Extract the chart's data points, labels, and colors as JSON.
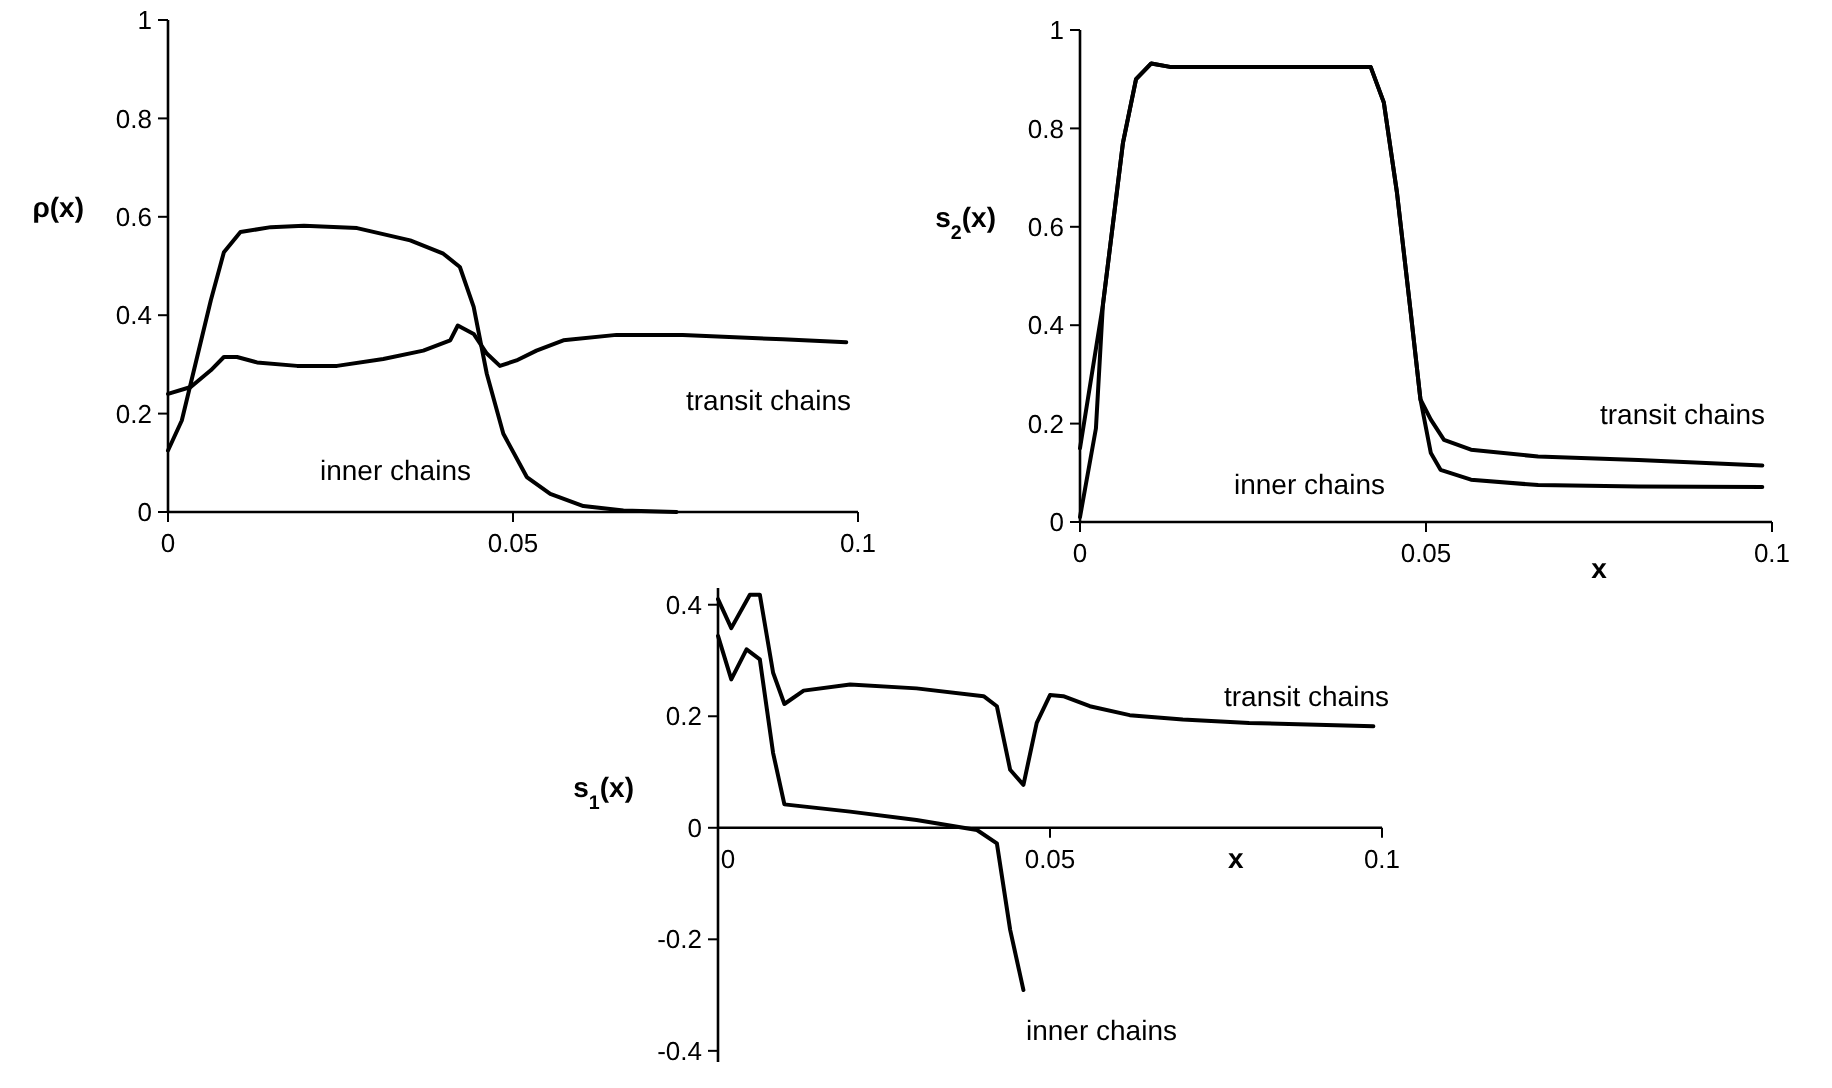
{
  "chart_data": [
    {
      "type": "line",
      "ylabel": "ρ(x)",
      "xlim": [
        0,
        0.1
      ],
      "ylim": [
        0,
        1
      ],
      "xticks": [
        0,
        0.05,
        0.1
      ],
      "yticks": [
        0,
        0.2,
        0.4,
        0.6,
        0.8,
        1
      ],
      "grid": false,
      "marker": "none",
      "line_style": "solid",
      "series": [
        {
          "name": "inner chains",
          "color": "#000000",
          "x": [
            0,
            0.002,
            0.0062,
            0.0081,
            0.0105,
            0.0149,
            0.0197,
            0.0274,
            0.0351,
            0.0399,
            0.0423,
            0.0443,
            0.0462,
            0.0486,
            0.052,
            0.0554,
            0.0602,
            0.066,
            0.0737
          ],
          "values": [
            0.125,
            0.186,
            0.43,
            0.528,
            0.569,
            0.579,
            0.582,
            0.577,
            0.552,
            0.525,
            0.498,
            0.417,
            0.281,
            0.159,
            0.071,
            0.037,
            0.012,
            0.003,
            0
          ]
        },
        {
          "name": "transit chains",
          "color": "#000000",
          "x": [
            0,
            0.0033,
            0.0062,
            0.0081,
            0.01,
            0.0129,
            0.0187,
            0.0245,
            0.0312,
            0.037,
            0.0409,
            0.042,
            0.0443,
            0.0462,
            0.0481,
            0.0505,
            0.0534,
            0.0573,
            0.065,
            0.0746,
            0.0891,
            0.0983
          ],
          "values": [
            0.24,
            0.254,
            0.288,
            0.315,
            0.315,
            0.304,
            0.297,
            0.297,
            0.311,
            0.328,
            0.349,
            0.379,
            0.362,
            0.322,
            0.297,
            0.308,
            0.328,
            0.349,
            0.36,
            0.36,
            0.351,
            0.345
          ]
        }
      ]
    },
    {
      "type": "line",
      "ylabel": "s$_{2}$(x)",
      "xlabel": "x",
      "xlim": [
        0,
        0.1
      ],
      "ylim": [
        0,
        1
      ],
      "xticks": [
        0,
        0.05,
        0.1
      ],
      "yticks": [
        0,
        0.2,
        0.4,
        0.6,
        0.8,
        1
      ],
      "grid": false,
      "marker": "none",
      "line_style": "solid",
      "series": [
        {
          "name": "inner chains",
          "color": "#000000",
          "x": [
            0,
            0.0023,
            0.0033,
            0.0062,
            0.0081,
            0.0103,
            0.013,
            0.042,
            0.0439,
            0.0458,
            0.0478,
            0.0492,
            0.0507,
            0.0521,
            0.0565,
            0.0662,
            0.0807,
            0.0986
          ],
          "values": [
            0.01,
            0.19,
            0.44,
            0.77,
            0.9,
            0.932,
            0.925,
            0.925,
            0.853,
            0.67,
            0.425,
            0.249,
            0.14,
            0.106,
            0.086,
            0.075,
            0.072,
            0.071
          ]
        },
        {
          "name": "transit chains",
          "color": "#000000",
          "x": [
            0,
            0.0033,
            0.0062,
            0.0081,
            0.0103,
            0.013,
            0.042,
            0.0439,
            0.0458,
            0.0478,
            0.0492,
            0.0507,
            0.0526,
            0.0565,
            0.0662,
            0.0807,
            0.0986
          ],
          "values": [
            0.15,
            0.44,
            0.77,
            0.9,
            0.932,
            0.925,
            0.925,
            0.853,
            0.67,
            0.425,
            0.249,
            0.208,
            0.167,
            0.147,
            0.133,
            0.126,
            0.115
          ]
        }
      ]
    },
    {
      "type": "line",
      "ylabel": "s$_{1}$(x)",
      "xlabel": "x",
      "xlim": [
        0,
        0.1
      ],
      "ylim": [
        -0.42,
        0.43
      ],
      "xticks": [
        0,
        0.05,
        0.1
      ],
      "yticks": [
        -0.4,
        -0.2,
        0,
        0.2,
        0.4
      ],
      "grid": false,
      "marker": "none",
      "line_style": "solid",
      "series": [
        {
          "name": "transit chains",
          "color": "#000000",
          "x": [
            0,
            0.002,
            0.0048,
            0.0063,
            0.0083,
            0.01,
            0.0129,
            0.0199,
            0.0299,
            0.04,
            0.042,
            0.044,
            0.046,
            0.048,
            0.05,
            0.052,
            0.056,
            0.062,
            0.07,
            0.08,
            0.0987
          ],
          "values": [
            0.41,
            0.358,
            0.418,
            0.418,
            0.278,
            0.222,
            0.246,
            0.257,
            0.25,
            0.236,
            0.218,
            0.104,
            0.077,
            0.188,
            0.238,
            0.236,
            0.218,
            0.202,
            0.194,
            0.188,
            0.182
          ]
        },
        {
          "name": "inner chains",
          "color": "#000000",
          "x": [
            0,
            0.002,
            0.0043,
            0.0063,
            0.0083,
            0.01,
            0.0199,
            0.0299,
            0.039,
            0.042,
            0.044,
            0.046
          ],
          "values": [
            0.344,
            0.266,
            0.32,
            0.302,
            0.134,
            0.042,
            0.029,
            0.014,
            -0.004,
            -0.028,
            -0.183,
            -0.291
          ]
        }
      ]
    }
  ]
}
